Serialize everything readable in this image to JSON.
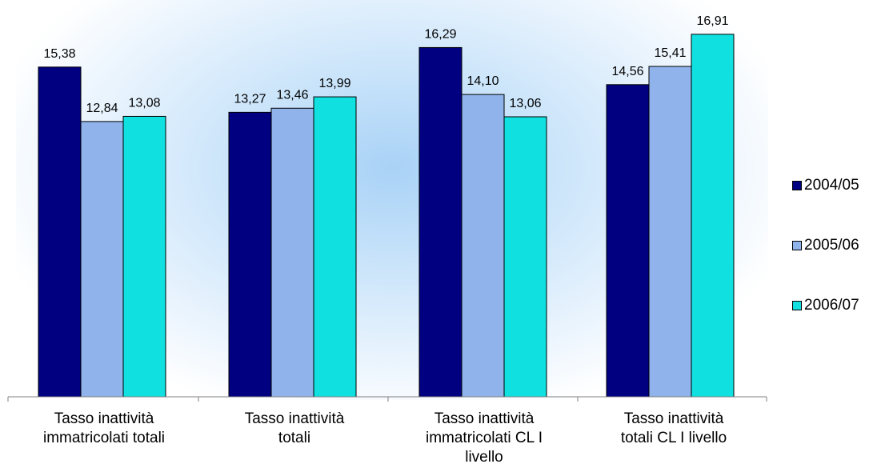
{
  "chart_data": {
    "type": "bar",
    "categories": [
      "Tasso inattività\nimmatricolati totali",
      "Tasso inattività\ntotali",
      "Tasso inattività\nimmatricolati CL I\nlivello",
      "Tasso inattività\ntotali CL I livello"
    ],
    "series": [
      {
        "name": "2004/05",
        "values": [
          15.38,
          13.27,
          16.29,
          14.56
        ],
        "labels": [
          "15,38",
          "13,27",
          "16,29",
          "14,56"
        ],
        "color": "#000080"
      },
      {
        "name": "2005/06",
        "values": [
          12.84,
          13.46,
          14.1,
          15.41
        ],
        "labels": [
          "12,84",
          "13,46",
          "14,10",
          "15,41"
        ],
        "color": "#8fb3ea"
      },
      {
        "name": "2006/07",
        "values": [
          13.08,
          13.99,
          13.06,
          16.91
        ],
        "labels": [
          "13,08",
          "13,99",
          "13,06",
          "16,91"
        ],
        "color": "#11e0e0"
      }
    ],
    "legend_position": "right",
    "grid": false
  }
}
